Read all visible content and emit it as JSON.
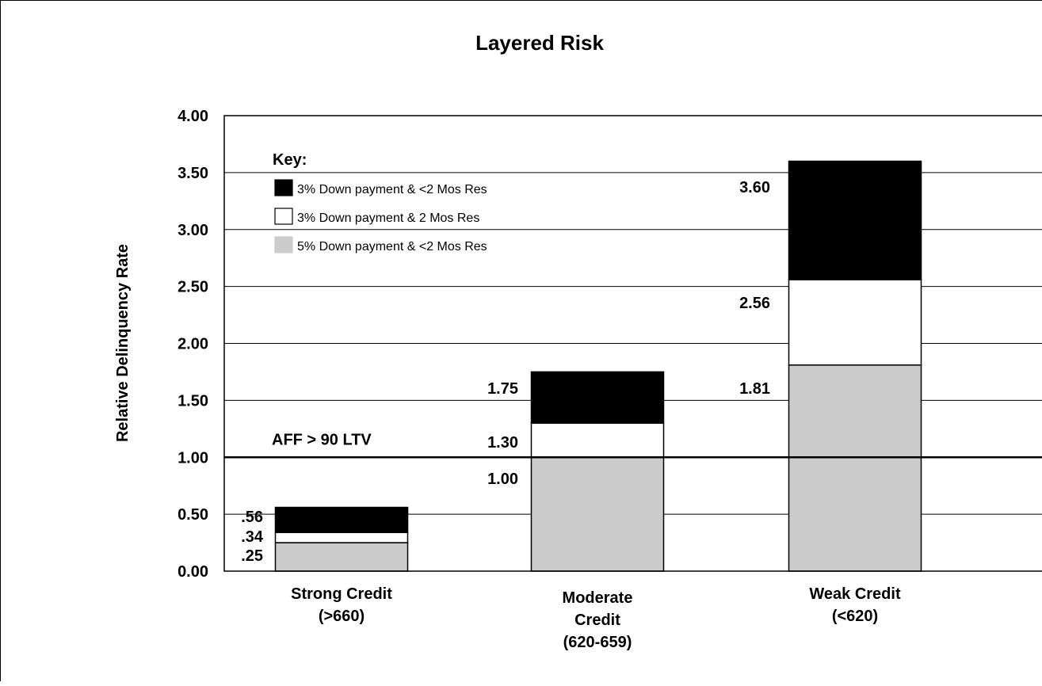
{
  "chart_data": {
    "type": "bar",
    "stacked": true,
    "title": "Layered Risk",
    "xlabel": "",
    "ylabel": "Relative Delinquency Rate",
    "ylim": [
      0,
      4
    ],
    "yticks": [
      "0.00",
      "0.50",
      "1.00",
      "1.50",
      "2.00",
      "2.50",
      "3.00",
      "3.50",
      "4.00"
    ],
    "grid": true,
    "categories": [
      [
        "Strong Credit",
        "(>660)"
      ],
      [
        "Moderate",
        "Credit",
        "(620-659)"
      ],
      [
        "Weak Credit",
        "(<620)"
      ]
    ],
    "series": [
      {
        "name": "5% Down payment & <2 Mos Res",
        "color": "#cccccc",
        "cumulative": [
          0.25,
          1.0,
          1.81
        ]
      },
      {
        "name": "3% Down payment & 2 Mos Res",
        "color": "#ffffff",
        "cumulative": [
          0.34,
          1.3,
          2.56
        ]
      },
      {
        "name": "3% Down payment & <2 Mos Res",
        "color": "#000000",
        "cumulative": [
          0.56,
          1.75,
          3.6
        ]
      }
    ],
    "data_labels": [
      [
        ".25",
        ".34",
        ".56"
      ],
      [
        "1.00",
        "1.30",
        "1.75"
      ],
      [
        "1.81",
        "2.56",
        "3.60"
      ]
    ],
    "legend": {
      "title": "Key:",
      "placement": "top-left"
    },
    "reference_line": {
      "value": 1.0,
      "label": "AFF > 90 LTV"
    }
  }
}
